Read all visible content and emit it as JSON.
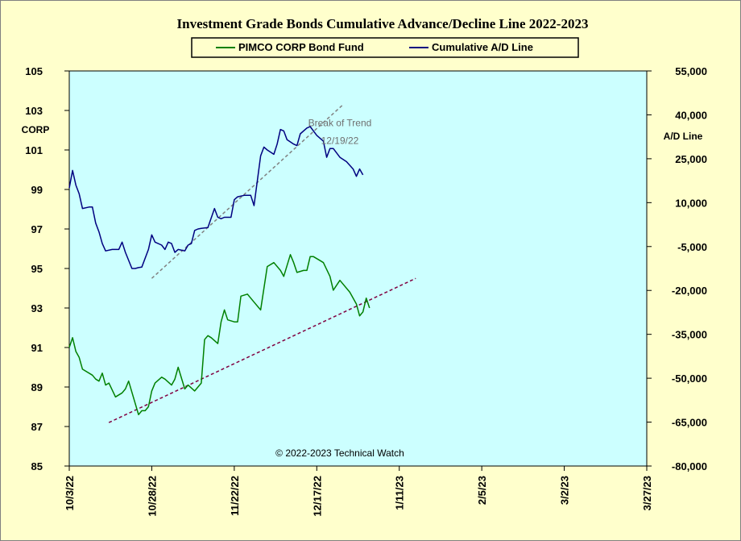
{
  "chart_data": {
    "type": "line",
    "title": "Investment Grade Bonds Cumulative Advance/Decline Line 2022-2023",
    "ylabel_left": "CORP",
    "ylabel_right": "A/D Line",
    "xlim": [
      "2022-10-03",
      "2023-03-27"
    ],
    "ylim_left": [
      85,
      105
    ],
    "ylim_right": [
      -80000,
      55000
    ],
    "x_ticks": [
      "10/3/22",
      "10/28/22",
      "11/22/22",
      "12/17/22",
      "1/11/23",
      "2/5/23",
      "3/2/23",
      "3/27/23"
    ],
    "y_ticks_left": [
      "85",
      "87",
      "89",
      "91",
      "93",
      "95",
      "97",
      "99",
      "101",
      "103",
      "105"
    ],
    "y_ticks_right": [
      "-80,000",
      "-65,000",
      "-50,000",
      "-35,000",
      "-20,000",
      "-5,000",
      "10,000",
      "25,000",
      "40,000",
      "55,000"
    ],
    "grid": false,
    "legend_position": "top-center",
    "plot_background": "#ccffff",
    "page_background": "#ffffcc",
    "series": [
      {
        "name": "PIMCO CORP Bond Fund",
        "axis": "left",
        "color": "#008000",
        "points": [
          [
            "2022-10-03",
            91.0
          ],
          [
            "2022-10-04",
            91.5
          ],
          [
            "2022-10-05",
            90.8
          ],
          [
            "2022-10-06",
            90.5
          ],
          [
            "2022-10-07",
            89.9
          ],
          [
            "2022-10-10",
            89.6
          ],
          [
            "2022-10-11",
            89.4
          ],
          [
            "2022-10-12",
            89.3
          ],
          [
            "2022-10-13",
            89.7
          ],
          [
            "2022-10-14",
            89.1
          ],
          [
            "2022-10-15",
            89.2
          ],
          [
            "2022-10-17",
            88.5
          ],
          [
            "2022-10-18",
            88.6
          ],
          [
            "2022-10-19",
            88.7
          ],
          [
            "2022-10-20",
            88.9
          ],
          [
            "2022-10-21",
            89.3
          ],
          [
            "2022-10-24",
            87.6
          ],
          [
            "2022-10-25",
            87.8
          ],
          [
            "2022-10-26",
            87.8
          ],
          [
            "2022-10-27",
            88.0
          ],
          [
            "2022-10-28",
            88.8
          ],
          [
            "2022-10-29",
            89.2
          ],
          [
            "2022-10-31",
            89.5
          ],
          [
            "2022-11-01",
            89.4
          ],
          [
            "2022-11-03",
            89.1
          ],
          [
            "2022-11-04",
            89.4
          ],
          [
            "2022-11-05",
            90.0
          ],
          [
            "2022-11-07",
            88.9
          ],
          [
            "2022-11-08",
            89.1
          ],
          [
            "2022-11-10",
            88.8
          ],
          [
            "2022-11-11",
            89.0
          ],
          [
            "2022-11-12",
            89.2
          ],
          [
            "2022-11-13",
            91.4
          ],
          [
            "2022-11-14",
            91.6
          ],
          [
            "2022-11-15",
            91.5
          ],
          [
            "2022-11-17",
            91.2
          ],
          [
            "2022-11-18",
            92.3
          ],
          [
            "2022-11-19",
            92.9
          ],
          [
            "2022-11-20",
            92.4
          ],
          [
            "2022-11-22",
            92.3
          ],
          [
            "2022-11-23",
            92.3
          ],
          [
            "2022-11-24",
            93.6
          ],
          [
            "2022-11-26",
            93.7
          ],
          [
            "2022-11-28",
            93.3
          ],
          [
            "2022-11-30",
            92.9
          ],
          [
            "2022-12-01",
            94.0
          ],
          [
            "2022-12-02",
            95.1
          ],
          [
            "2022-12-04",
            95.3
          ],
          [
            "2022-12-06",
            94.9
          ],
          [
            "2022-12-07",
            94.6
          ],
          [
            "2022-12-09",
            95.7
          ],
          [
            "2022-12-10",
            95.3
          ],
          [
            "2022-12-11",
            94.8
          ],
          [
            "2022-12-13",
            94.9
          ],
          [
            "2022-12-14",
            94.9
          ],
          [
            "2022-12-15",
            95.6
          ],
          [
            "2022-12-16",
            95.6
          ],
          [
            "2022-12-18",
            95.4
          ],
          [
            "2022-12-19",
            95.3
          ],
          [
            "2022-12-21",
            94.6
          ],
          [
            "2022-12-22",
            93.9
          ],
          [
            "2022-12-24",
            94.4
          ],
          [
            "2022-12-27",
            93.8
          ],
          [
            "2022-12-29",
            93.2
          ],
          [
            "2022-12-30",
            92.6
          ],
          [
            "2022-12-31",
            92.8
          ],
          [
            "2023-01-01",
            93.5
          ],
          [
            "2023-01-02",
            93.0
          ]
        ]
      },
      {
        "name": "Cumulative A/D Line",
        "axis": "right",
        "color": "#000080",
        "points": [
          [
            "2022-10-03",
            15000
          ],
          [
            "2022-10-04",
            21000
          ],
          [
            "2022-10-05",
            16000
          ],
          [
            "2022-10-06",
            13000
          ],
          [
            "2022-10-07",
            8000
          ],
          [
            "2022-10-09",
            8500
          ],
          [
            "2022-10-10",
            8500
          ],
          [
            "2022-10-11",
            3000
          ],
          [
            "2022-10-12",
            0
          ],
          [
            "2022-10-13",
            -4000
          ],
          [
            "2022-10-14",
            -6500
          ],
          [
            "2022-10-16",
            -6000
          ],
          [
            "2022-10-18",
            -6000
          ],
          [
            "2022-10-19",
            -3500
          ],
          [
            "2022-10-20",
            -7000
          ],
          [
            "2022-10-22",
            -12500
          ],
          [
            "2022-10-23",
            -12500
          ],
          [
            "2022-10-24",
            -12200
          ],
          [
            "2022-10-25",
            -12000
          ],
          [
            "2022-10-27",
            -6000
          ],
          [
            "2022-10-28",
            -1000
          ],
          [
            "2022-10-29",
            -3500
          ],
          [
            "2022-10-31",
            -4500
          ],
          [
            "2022-11-01",
            -6000
          ],
          [
            "2022-11-02",
            -3500
          ],
          [
            "2022-11-03",
            -4000
          ],
          [
            "2022-11-04",
            -7000
          ],
          [
            "2022-11-05",
            -6000
          ],
          [
            "2022-11-07",
            -6500
          ],
          [
            "2022-11-08",
            -4500
          ],
          [
            "2022-11-09",
            -4000
          ],
          [
            "2022-11-10",
            500
          ],
          [
            "2022-11-11",
            1000
          ],
          [
            "2022-11-12",
            1200
          ],
          [
            "2022-11-14",
            1500
          ],
          [
            "2022-11-16",
            8000
          ],
          [
            "2022-11-17",
            5000
          ],
          [
            "2022-11-18",
            4500
          ],
          [
            "2022-11-19",
            5000
          ],
          [
            "2022-11-21",
            5000
          ],
          [
            "2022-11-22",
            11000
          ],
          [
            "2022-11-23",
            12000
          ],
          [
            "2022-11-25",
            12500
          ],
          [
            "2022-11-27",
            12500
          ],
          [
            "2022-11-28",
            9000
          ],
          [
            "2022-11-30",
            26000
          ],
          [
            "2022-12-01",
            29000
          ],
          [
            "2022-12-02",
            28000
          ],
          [
            "2022-12-04",
            26500
          ],
          [
            "2022-12-05",
            30000
          ],
          [
            "2022-12-06",
            35000
          ],
          [
            "2022-12-07",
            34500
          ],
          [
            "2022-12-08",
            31500
          ],
          [
            "2022-12-10",
            30000
          ],
          [
            "2022-12-11",
            29500
          ],
          [
            "2022-12-12",
            33500
          ],
          [
            "2022-12-14",
            35500
          ],
          [
            "2022-12-15",
            36000
          ],
          [
            "2022-12-17",
            33000
          ],
          [
            "2022-12-19",
            31000
          ],
          [
            "2022-12-20",
            25500
          ],
          [
            "2022-12-21",
            28500
          ],
          [
            "2022-12-22",
            28500
          ],
          [
            "2022-12-24",
            25500
          ],
          [
            "2022-12-26",
            24000
          ],
          [
            "2022-12-28",
            21500
          ],
          [
            "2022-12-29",
            19000
          ],
          [
            "2022-12-30",
            21500
          ],
          [
            "2022-12-31",
            19500
          ]
        ]
      }
    ],
    "trendlines": [
      {
        "axis": "left",
        "color": "#808080",
        "style": "dashed",
        "from": [
          "2022-10-28",
          94.5
        ],
        "to": [
          "2022-12-25",
          103.3
        ]
      },
      {
        "axis": "left",
        "color": "#800040",
        "style": "dashed",
        "from": [
          "2022-10-15",
          87.2
        ],
        "to": [
          "2023-01-16",
          94.5
        ]
      }
    ],
    "annotations": [
      {
        "text": "Break of Trend",
        "x": "2022-12-24",
        "y": 102.2,
        "color": "#6f6f6f"
      },
      {
        "text": "12/19/22",
        "x": "2022-12-24",
        "y": 101.3,
        "color": "#6f6f6f"
      },
      {
        "text": "© 2022-2023  Technical  Watch",
        "x": "2022-12-24",
        "y": 85.5,
        "color": "#000000"
      }
    ]
  }
}
